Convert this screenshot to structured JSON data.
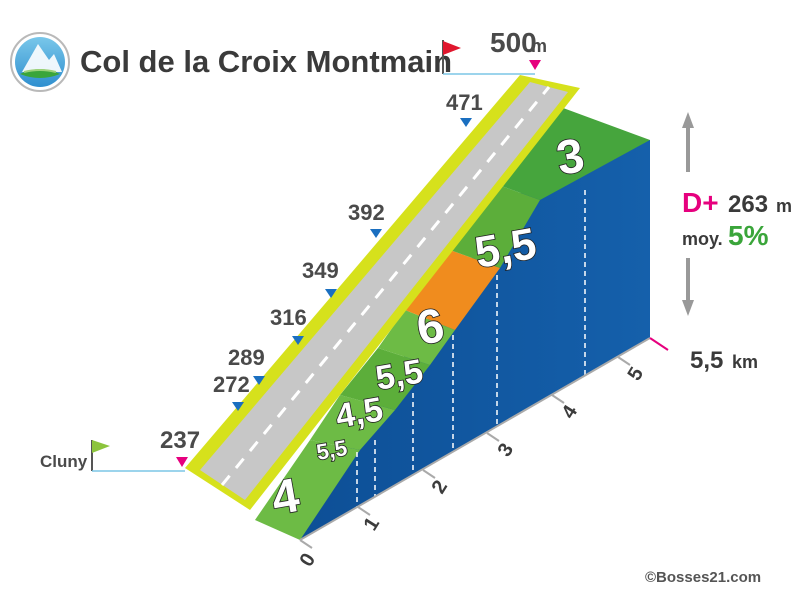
{
  "title": "Col de la Croix Montmain",
  "summit": {
    "altitude": "500",
    "unit": "m"
  },
  "start": {
    "name": "Cluny",
    "altitude": "237"
  },
  "altitude_markers": [
    "272",
    "289",
    "316",
    "349",
    "392",
    "471"
  ],
  "stats": {
    "dplus_label": "D+",
    "dplus_value": "263",
    "dplus_unit": "m",
    "avg_label": "moy.",
    "avg_value": "5%"
  },
  "distance": {
    "value": "5,5",
    "unit": "km"
  },
  "km_ticks": [
    "0",
    "1",
    "2",
    "3",
    "4",
    "5"
  ],
  "credit": "©Bosses21.com",
  "chart_data": {
    "type": "area",
    "title": "Col de la Croix Montmain",
    "x_unit": "km",
    "y_unit": "m",
    "start_altitude": 237,
    "summit_altitude": 500,
    "elevation_gain": 263,
    "average_gradient_pct": 5,
    "total_distance_km": 5.5,
    "segments": [
      {
        "from_km": 0,
        "to_km": 0.5,
        "grade_pct": 4,
        "label": "4",
        "color": "#6dbb45"
      },
      {
        "from_km": 0.5,
        "to_km": 1,
        "grade_pct": 5.5,
        "label": "5,5",
        "color": "#6dbb45"
      },
      {
        "from_km": 1,
        "to_km": 1.5,
        "grade_pct": 4.5,
        "label": "4,5",
        "color": "#5cae3a"
      },
      {
        "from_km": 1.5,
        "to_km": 2,
        "grade_pct": 5.5,
        "label": "5,5",
        "color": "#6dbb45"
      },
      {
        "from_km": 2,
        "to_km": 3,
        "grade_pct": 6,
        "label": "6",
        "color": "#f08c1e"
      },
      {
        "from_km": 3,
        "to_km": 4.5,
        "grade_pct": 5.5,
        "label": "5,5",
        "color": "#5cae3a"
      },
      {
        "from_km": 4.5,
        "to_km": 5.5,
        "grade_pct": 3,
        "label": "3",
        "color": "#46a53d"
      }
    ],
    "altitude_points": [
      237,
      272,
      289,
      316,
      349,
      392,
      471,
      500
    ]
  }
}
